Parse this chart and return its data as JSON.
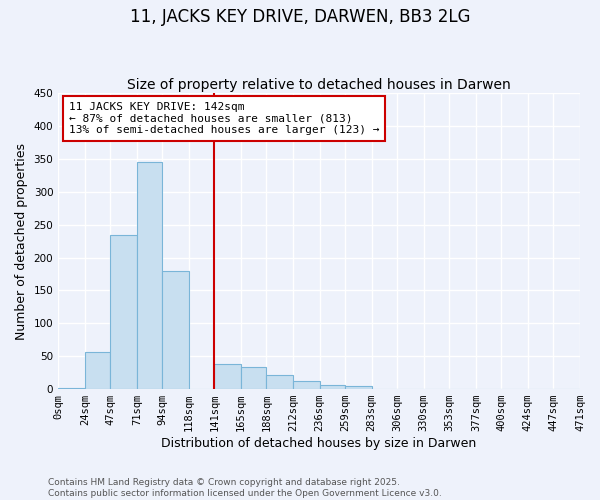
{
  "title": "11, JACKS KEY DRIVE, DARWEN, BB3 2LG",
  "subtitle": "Size of property relative to detached houses in Darwen",
  "xlabel": "Distribution of detached houses by size in Darwen",
  "ylabel": "Number of detached properties",
  "bin_edges": [
    0,
    24,
    47,
    71,
    94,
    118,
    141,
    165,
    188,
    212,
    236,
    259,
    283,
    306,
    330,
    353,
    377,
    400,
    424,
    447,
    471
  ],
  "bin_counts": [
    2,
    57,
    234,
    345,
    180,
    0,
    38,
    34,
    22,
    13,
    6,
    5,
    0,
    0,
    0,
    0,
    0,
    0,
    0,
    0
  ],
  "bar_color": "#c8dff0",
  "bar_edge_color": "#7ab5d8",
  "vline_x": 141,
  "vline_color": "#cc0000",
  "annotation_line1": "11 JACKS KEY DRIVE: 142sqm",
  "annotation_line2": "← 87% of detached houses are smaller (813)",
  "annotation_line3": "13% of semi-detached houses are larger (123) →",
  "annotation_box_color": "white",
  "annotation_box_edge": "#cc0000",
  "ylim": [
    0,
    450
  ],
  "tick_labels": [
    "0sqm",
    "24sqm",
    "47sqm",
    "71sqm",
    "94sqm",
    "118sqm",
    "141sqm",
    "165sqm",
    "188sqm",
    "212sqm",
    "236sqm",
    "259sqm",
    "283sqm",
    "306sqm",
    "330sqm",
    "353sqm",
    "377sqm",
    "400sqm",
    "424sqm",
    "447sqm",
    "471sqm"
  ],
  "footnote_line1": "Contains HM Land Registry data © Crown copyright and database right 2025.",
  "footnote_line2": "Contains public sector information licensed under the Open Government Licence v3.0.",
  "background_color": "#eef2fb",
  "grid_color": "white",
  "title_fontsize": 12,
  "subtitle_fontsize": 10,
  "label_fontsize": 9,
  "tick_fontsize": 7.5,
  "footnote_fontsize": 6.5,
  "annotation_fontsize": 8
}
